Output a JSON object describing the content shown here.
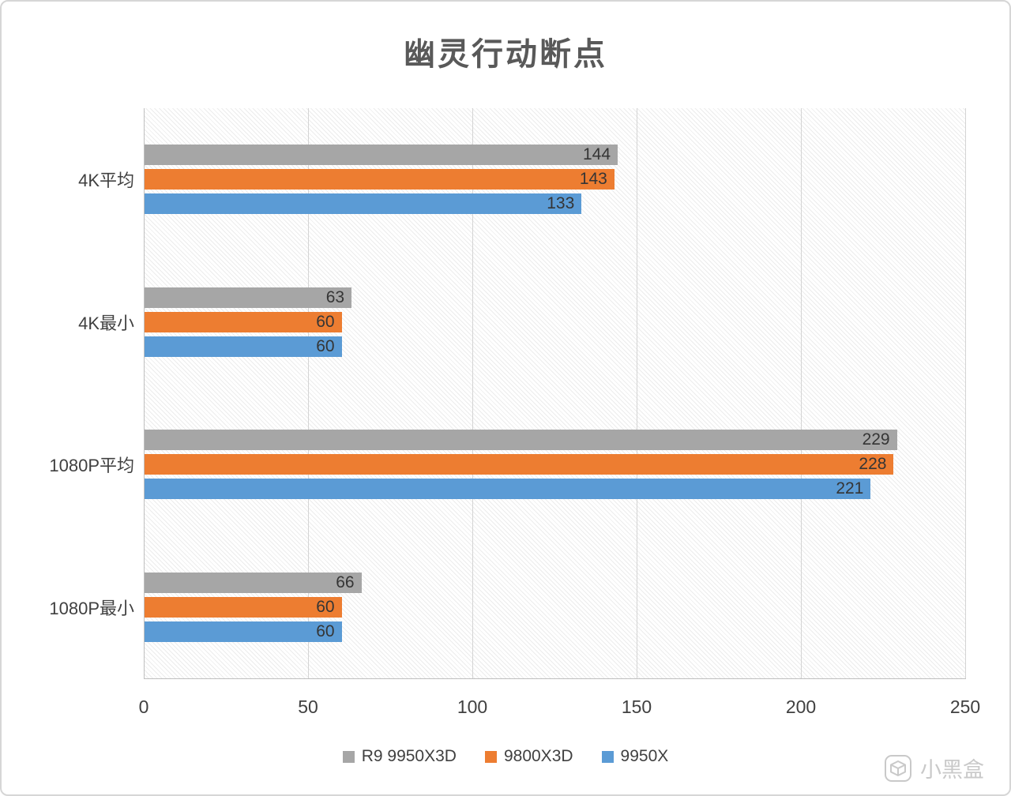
{
  "title": "幽灵行动断点",
  "chart_data": {
    "type": "bar",
    "orientation": "horizontal",
    "categories": [
      "4K平均",
      "4K最小",
      "1080P平均",
      "1080P最小"
    ],
    "series": [
      {
        "name": "R9 9950X3D",
        "color": "#a6a6a6",
        "values": [
          144,
          63,
          229,
          66
        ]
      },
      {
        "name": "9800X3D",
        "color": "#ed7d31",
        "values": [
          143,
          60,
          228,
          60
        ]
      },
      {
        "name": "9950X",
        "color": "#5b9bd5",
        "values": [
          133,
          60,
          221,
          60
        ]
      }
    ],
    "xlim": [
      0,
      250
    ],
    "xticks": [
      0,
      50,
      100,
      150,
      200,
      250
    ],
    "grid": true,
    "legend_position": "bottom",
    "plot_background": "diagonal-hatch"
  },
  "watermark": {
    "text": "小黑盒"
  }
}
